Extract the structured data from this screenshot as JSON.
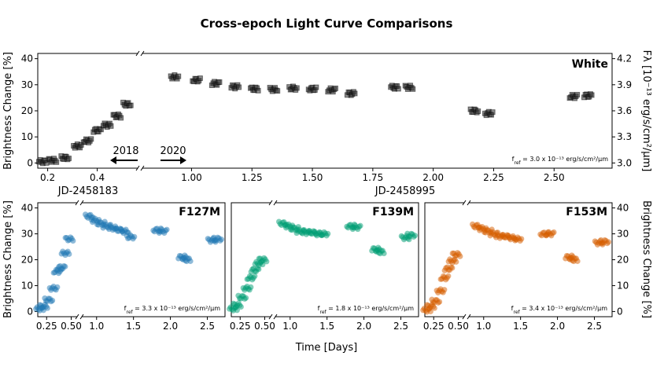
{
  "chart_data": {
    "type": "scatter",
    "title": "Cross-epoch Light Curve Comparisons",
    "xlabel": "Time [Days]",
    "panels": [
      {
        "id": "white",
        "band_label": "White",
        "band_color": "#000000",
        "ylabel": "Brightness Change [%]",
        "ylabel_right": "Fλ [10⁻¹³ erg/s/cm²/μm]",
        "ylim": [
          -2,
          42
        ],
        "yticks": [
          0,
          10,
          20,
          30,
          40
        ],
        "right_ticks": [
          {
            "label": "3.0",
            "y": 0
          },
          {
            "label": "3.3",
            "y": 10
          },
          {
            "label": "3.6",
            "y": 20
          },
          {
            "label": "3.9",
            "y": 30
          },
          {
            "label": "4.2",
            "y": 40
          }
        ],
        "fref_text": "f_ref = 3.0 x 10⁻¹³ erg/s/cm²/μm",
        "left_segment": {
          "xlim": [
            0.16,
            0.56
          ],
          "xticks": [
            "0.2",
            "0.4"
          ],
          "xticks_values": [
            0.2,
            0.4
          ],
          "epoch_label": "JD-2458183",
          "arrow_label": "2018"
        },
        "right_segment": {
          "xlim": [
            0.8,
            2.74
          ],
          "xticks": [
            "1.00",
            "1.25",
            "1.50",
            "1.75",
            "2.00",
            "2.25",
            "2.50"
          ],
          "xticks_values": [
            1.0,
            1.25,
            1.5,
            1.75,
            2.0,
            2.25,
            2.5
          ],
          "epoch_label": "JD-2458995",
          "arrow_label": "2020"
        },
        "clusters": [
          [
            0.18,
            0.5
          ],
          [
            0.22,
            1.0
          ],
          [
            0.27,
            2.0
          ],
          [
            0.32,
            6.5
          ],
          [
            0.36,
            8.5
          ],
          [
            0.4,
            12.5
          ],
          [
            0.44,
            14.5
          ],
          [
            0.48,
            18.0
          ],
          [
            0.52,
            22.5
          ],
          [
            0.93,
            33.0
          ],
          [
            1.02,
            31.8
          ],
          [
            1.1,
            30.5
          ],
          [
            1.18,
            29.2
          ],
          [
            1.26,
            28.4
          ],
          [
            1.34,
            28.2
          ],
          [
            1.42,
            28.7
          ],
          [
            1.5,
            28.4
          ],
          [
            1.58,
            28.0
          ],
          [
            1.66,
            26.6
          ],
          [
            1.84,
            29.0
          ],
          [
            1.9,
            29.0
          ],
          [
            2.17,
            20.0
          ],
          [
            2.23,
            19.0
          ],
          [
            2.58,
            25.5
          ],
          [
            2.64,
            25.8
          ]
        ],
        "color": "#333333"
      },
      {
        "id": "f127m",
        "band_label": "F127M",
        "band_color": "#1f77b4",
        "ylabel": "Brightness Change [%]",
        "ylim": [
          -2,
          42
        ],
        "yticks": [
          0,
          10,
          20,
          30,
          40
        ],
        "fref_text": "f_ref = 3.3 x 10⁻¹³ erg/s/cm²/μm",
        "left_xlim": [
          0.16,
          0.56
        ],
        "left_xticks": [
          "0.25",
          "0.50"
        ],
        "left_xticks_values": [
          0.25,
          0.5
        ],
        "right_xlim": [
          0.8,
          2.74
        ],
        "right_xticks": [
          "1.0",
          "1.5",
          "2.0",
          "2.5"
        ],
        "right_xticks_values": [
          1.0,
          1.5,
          2.0,
          2.5
        ],
        "clusters": [
          [
            0.18,
            1.0
          ],
          [
            0.22,
            2.0
          ],
          [
            0.27,
            4.5
          ],
          [
            0.32,
            9.0
          ],
          [
            0.36,
            15.5
          ],
          [
            0.4,
            17.0
          ],
          [
            0.44,
            22.5
          ],
          [
            0.48,
            28.0
          ],
          [
            0.9,
            36.8
          ],
          [
            0.98,
            35.2
          ],
          [
            1.06,
            34.0
          ],
          [
            1.14,
            33.0
          ],
          [
            1.22,
            32.2
          ],
          [
            1.3,
            31.5
          ],
          [
            1.38,
            31.0
          ],
          [
            1.46,
            28.8
          ],
          [
            1.82,
            31.5
          ],
          [
            1.9,
            31.0
          ],
          [
            2.16,
            21.0
          ],
          [
            2.22,
            20.0
          ],
          [
            2.56,
            27.5
          ],
          [
            2.64,
            28.0
          ]
        ],
        "color": "#1f77b4"
      },
      {
        "id": "f139m",
        "band_label": "F139M",
        "band_color": "#2ca02c",
        "ylim": [
          -2,
          42
        ],
        "fref_text": "f_ref = 1.8 x 10⁻¹³ erg/s/cm²/μm",
        "left_xlim": [
          0.16,
          0.56
        ],
        "left_xticks": [
          "0.25",
          "0.50"
        ],
        "left_xticks_values": [
          0.25,
          0.5
        ],
        "right_xlim": [
          0.8,
          2.74
        ],
        "right_xticks": [
          "1.0",
          "1.5",
          "2.0",
          "2.5"
        ],
        "right_xticks_values": [
          1.0,
          1.5,
          2.0,
          2.5
        ],
        "clusters": [
          [
            0.18,
            1.0
          ],
          [
            0.22,
            2.5
          ],
          [
            0.27,
            5.5
          ],
          [
            0.32,
            9.0
          ],
          [
            0.36,
            13.0
          ],
          [
            0.4,
            16.0
          ],
          [
            0.44,
            18.5
          ],
          [
            0.48,
            20.0
          ],
          [
            0.9,
            34.0
          ],
          [
            0.98,
            33.0
          ],
          [
            1.06,
            32.0
          ],
          [
            1.14,
            31.0
          ],
          [
            1.22,
            30.5
          ],
          [
            1.3,
            30.5
          ],
          [
            1.38,
            30.0
          ],
          [
            1.46,
            30.0
          ],
          [
            1.82,
            33.0
          ],
          [
            1.9,
            32.5
          ],
          [
            2.16,
            24.0
          ],
          [
            2.22,
            23.0
          ],
          [
            2.56,
            28.5
          ],
          [
            2.64,
            29.5
          ]
        ],
        "color": "#009e73"
      },
      {
        "id": "f153m",
        "band_label": "F153M",
        "band_color": "#d55e00",
        "ylabel_right": "Brightness Change [%]",
        "ylim": [
          -2,
          42
        ],
        "yticks": [
          0,
          10,
          20,
          30,
          40
        ],
        "fref_text": "f_ref = 3.4 x 10⁻¹³ erg/s/cm²/μm",
        "left_xlim": [
          0.16,
          0.56
        ],
        "left_xticks": [
          "0.25",
          "0.50"
        ],
        "left_xticks_values": [
          0.25,
          0.5
        ],
        "right_xlim": [
          0.8,
          2.74
        ],
        "right_xticks": [
          "1.0",
          "1.5",
          "2.0",
          "2.5"
        ],
        "right_xticks_values": [
          1.0,
          1.5,
          2.0,
          2.5
        ],
        "clusters": [
          [
            0.18,
            0.5
          ],
          [
            0.22,
            2.0
          ],
          [
            0.27,
            4.0
          ],
          [
            0.32,
            8.0
          ],
          [
            0.36,
            13.0
          ],
          [
            0.4,
            16.5
          ],
          [
            0.44,
            19.5
          ],
          [
            0.48,
            22.0
          ],
          [
            0.9,
            33.0
          ],
          [
            0.98,
            32.0
          ],
          [
            1.06,
            31.0
          ],
          [
            1.14,
            30.0
          ],
          [
            1.22,
            29.0
          ],
          [
            1.3,
            29.0
          ],
          [
            1.38,
            28.5
          ],
          [
            1.46,
            28.0
          ],
          [
            1.82,
            30.0
          ],
          [
            1.9,
            30.0
          ],
          [
            2.16,
            21.0
          ],
          [
            2.22,
            20.0
          ],
          [
            2.56,
            26.5
          ],
          [
            2.64,
            27.0
          ]
        ],
        "color": "#d55e00"
      }
    ]
  }
}
